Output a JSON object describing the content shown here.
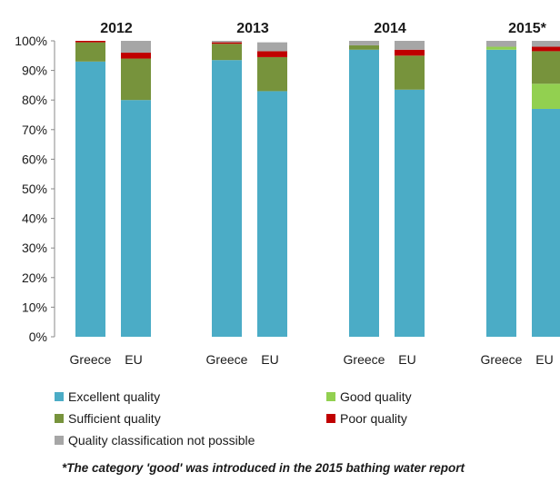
{
  "chart_data": {
    "type": "bar",
    "stacked": true,
    "groups": [
      "2012",
      "2013",
      "2014",
      "2015*"
    ],
    "categories": [
      "Greece",
      "EU"
    ],
    "yticks": [
      "0%",
      "10%",
      "20%",
      "30%",
      "40%",
      "50%",
      "60%",
      "70%",
      "80%",
      "90%",
      "100%"
    ],
    "ylim": [
      0,
      100
    ],
    "grid": false,
    "series": [
      {
        "name": "Excellent quality",
        "color": "#4bacc6",
        "values": [
          [
            93,
            80
          ],
          [
            93.5,
            83
          ],
          [
            97,
            83.5
          ],
          [
            97,
            77
          ]
        ]
      },
      {
        "name": "Good quality",
        "color": "#92d050",
        "values": [
          [
            0,
            0
          ],
          [
            0,
            0
          ],
          [
            0,
            0
          ],
          [
            1,
            8.5
          ]
        ]
      },
      {
        "name": "Sufficient quality",
        "color": "#77933c",
        "values": [
          [
            6.5,
            14
          ],
          [
            5.5,
            11.5
          ],
          [
            1.5,
            11.5
          ],
          [
            0,
            11
          ]
        ]
      },
      {
        "name": "Poor quality",
        "color": "#c00000",
        "values": [
          [
            0.5,
            2
          ],
          [
            0.5,
            2
          ],
          [
            0,
            2
          ],
          [
            0,
            1.5
          ]
        ]
      },
      {
        "name": "Quality classification not possible",
        "color": "#a6a6a6",
        "values": [
          [
            0,
            4
          ],
          [
            0.5,
            3
          ],
          [
            1.5,
            3
          ],
          [
            2,
            2
          ]
        ]
      }
    ],
    "legend_position": "bottom"
  },
  "footnote": "*The category 'good' was introduced  in the 2015 bathing water report"
}
